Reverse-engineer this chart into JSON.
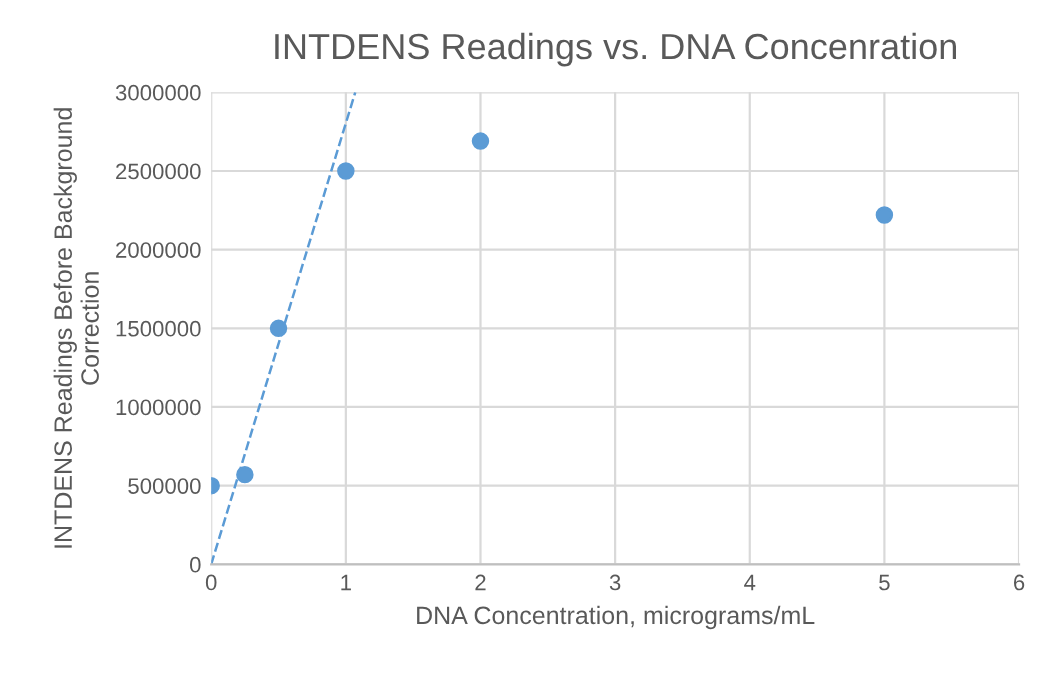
{
  "chart_data": {
    "type": "scatter",
    "title": "INTDENS Readings vs. DNA Concenration",
    "xlabel": "DNA Concentration, micrograms/mL",
    "ylabel": "INTDENS Readings Before Background\nCorrection",
    "series": [
      {
        "color": "#5b9bd5",
        "marker": "circle",
        "x": [
          0,
          0.25,
          0.5,
          1,
          2,
          5
        ],
        "values": [
          500000,
          570000,
          1500000,
          2500000,
          2690000,
          2220000
        ]
      },
      {
        "type": "line",
        "color": "#5b9bd5",
        "line_style": "dashed",
        "marker": "none",
        "x": [
          0,
          1.07
        ],
        "values": [
          0,
          3000000
        ]
      }
    ],
    "xlim": [
      0,
      6
    ],
    "xticks": [
      0,
      1,
      2,
      3,
      4,
      5,
      6
    ],
    "ylim": [
      0,
      3000000
    ],
    "yticks": [
      0,
      500000,
      1000000,
      1500000,
      2000000,
      2500000,
      3000000
    ],
    "grid": true,
    "legend": false
  }
}
